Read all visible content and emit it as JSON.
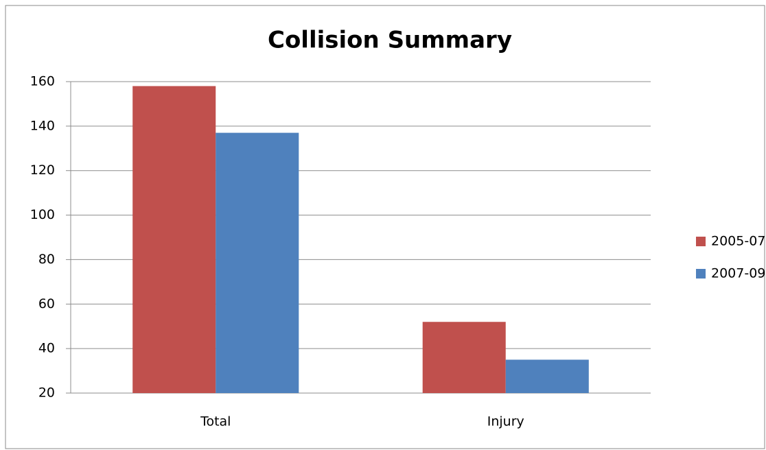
{
  "chart_data": {
    "type": "bar",
    "title": "Collision Summary",
    "categories": [
      "Total",
      "Injury"
    ],
    "series": [
      {
        "name": "2005-07",
        "color": "#c0504d",
        "values": [
          158,
          52
        ]
      },
      {
        "name": "2007-09",
        "color": "#4f81bd",
        "values": [
          137,
          35
        ]
      }
    ],
    "ylim": [
      20,
      160
    ],
    "yticks": [
      20,
      40,
      60,
      80,
      100,
      120,
      140,
      160
    ],
    "grid": true,
    "legend": "right"
  }
}
